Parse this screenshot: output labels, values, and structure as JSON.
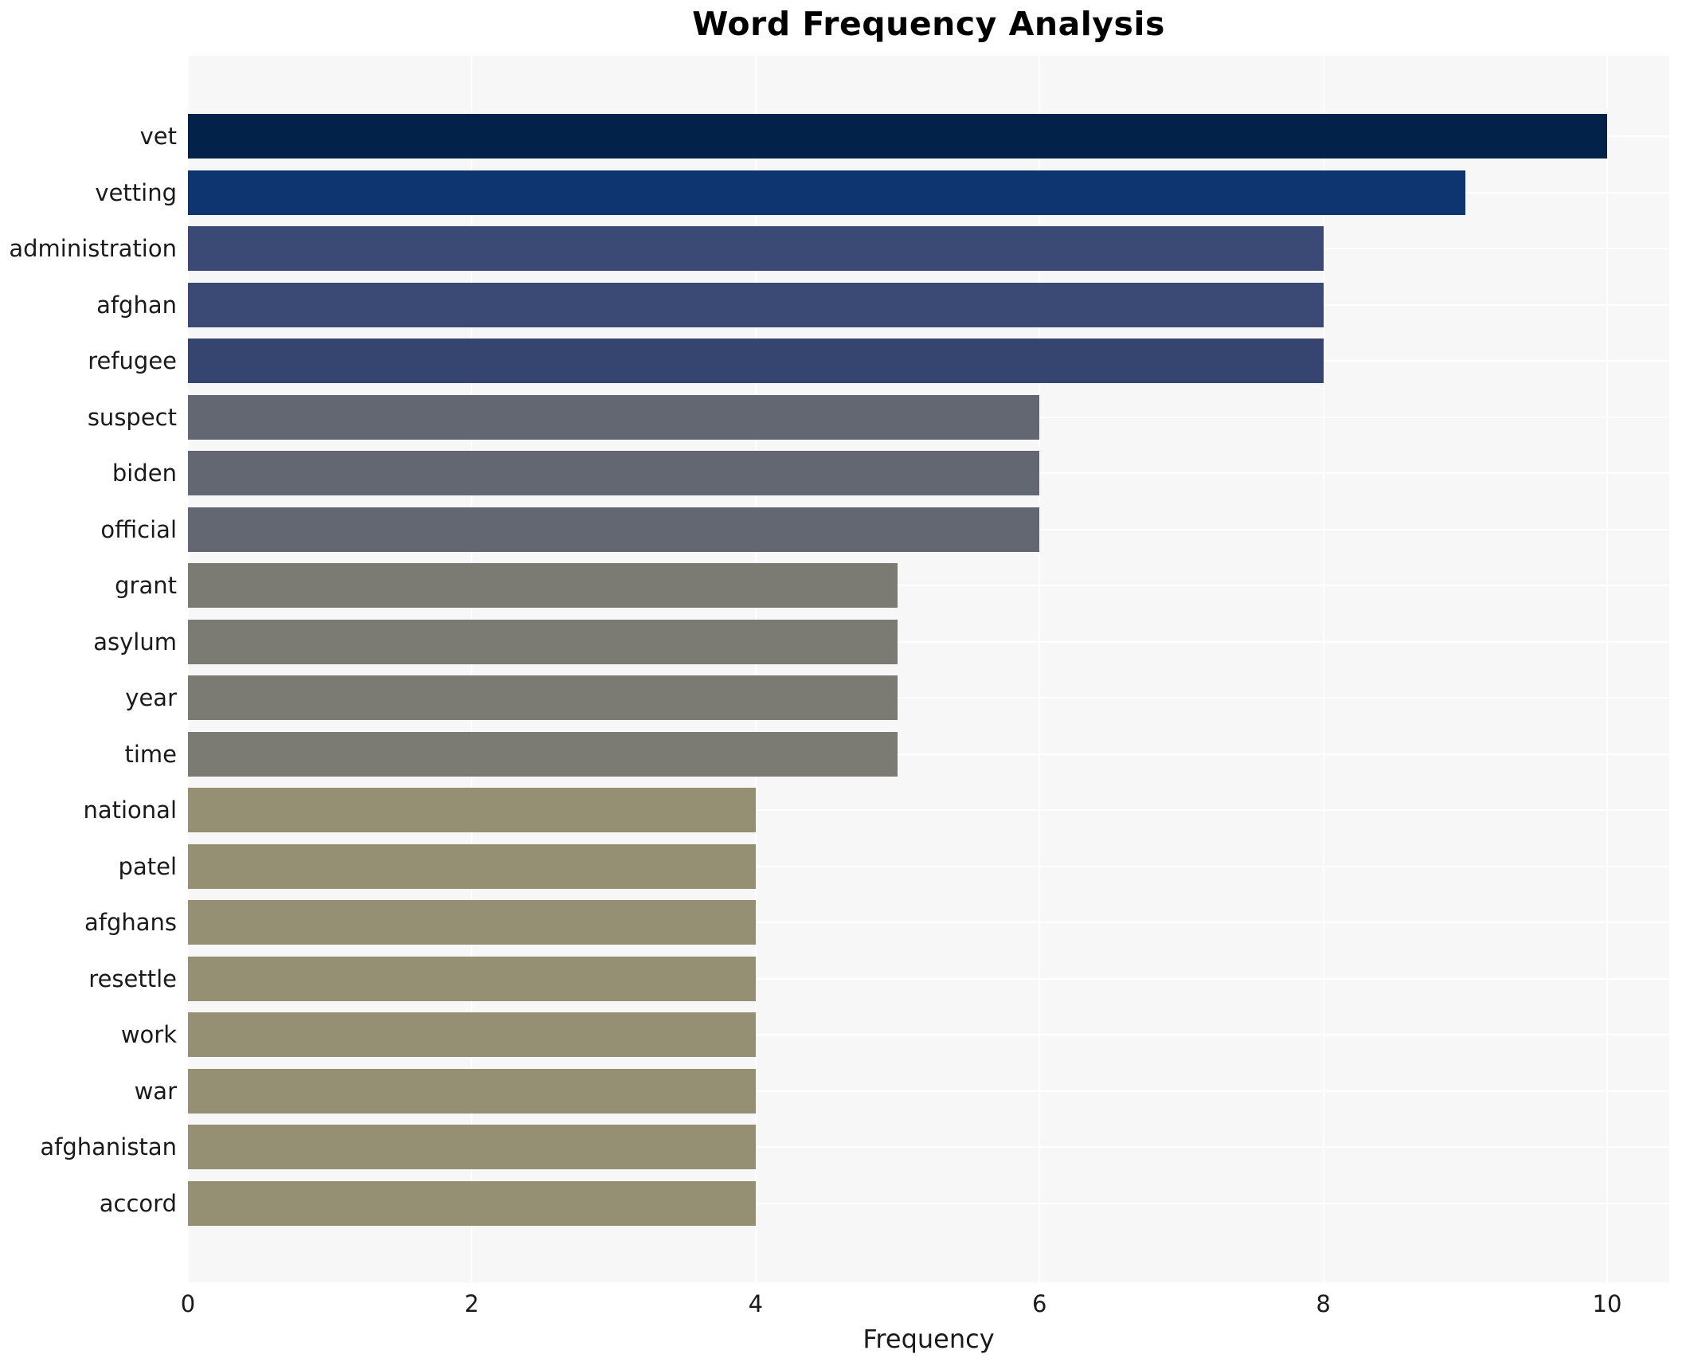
{
  "chart_data": {
    "type": "bar",
    "orientation": "horizontal",
    "title": "Word Frequency Analysis",
    "xlabel": "Frequency",
    "ylabel": "",
    "categories": [
      "vet",
      "vetting",
      "administration",
      "afghan",
      "refugee",
      "suspect",
      "biden",
      "official",
      "grant",
      "asylum",
      "year",
      "time",
      "national",
      "patel",
      "afghans",
      "resettle",
      "work",
      "war",
      "afghanistan",
      "accord"
    ],
    "values": [
      10,
      9,
      8,
      8,
      8,
      6,
      6,
      6,
      5,
      5,
      5,
      5,
      4,
      4,
      4,
      4,
      4,
      4,
      4,
      4
    ],
    "bar_colors": [
      "#032249",
      "#0e356f",
      "#3a4a74",
      "#3a4a74",
      "#36456f",
      "#636771",
      "#636771",
      "#636771",
      "#7b7a73",
      "#7b7a73",
      "#7b7a73",
      "#7b7a73",
      "#959073",
      "#959073",
      "#959073",
      "#959073",
      "#959073",
      "#959073",
      "#959073",
      "#959073"
    ],
    "xlim": [
      0,
      10.44
    ],
    "xticks": [
      0,
      2,
      4,
      6,
      8,
      10
    ],
    "legend": "none",
    "grid": true,
    "grid_color": "#ffffff",
    "plot_background": "#f7f7f8",
    "figure_background": "#ffffff",
    "text_color": "#1a1a1a"
  }
}
